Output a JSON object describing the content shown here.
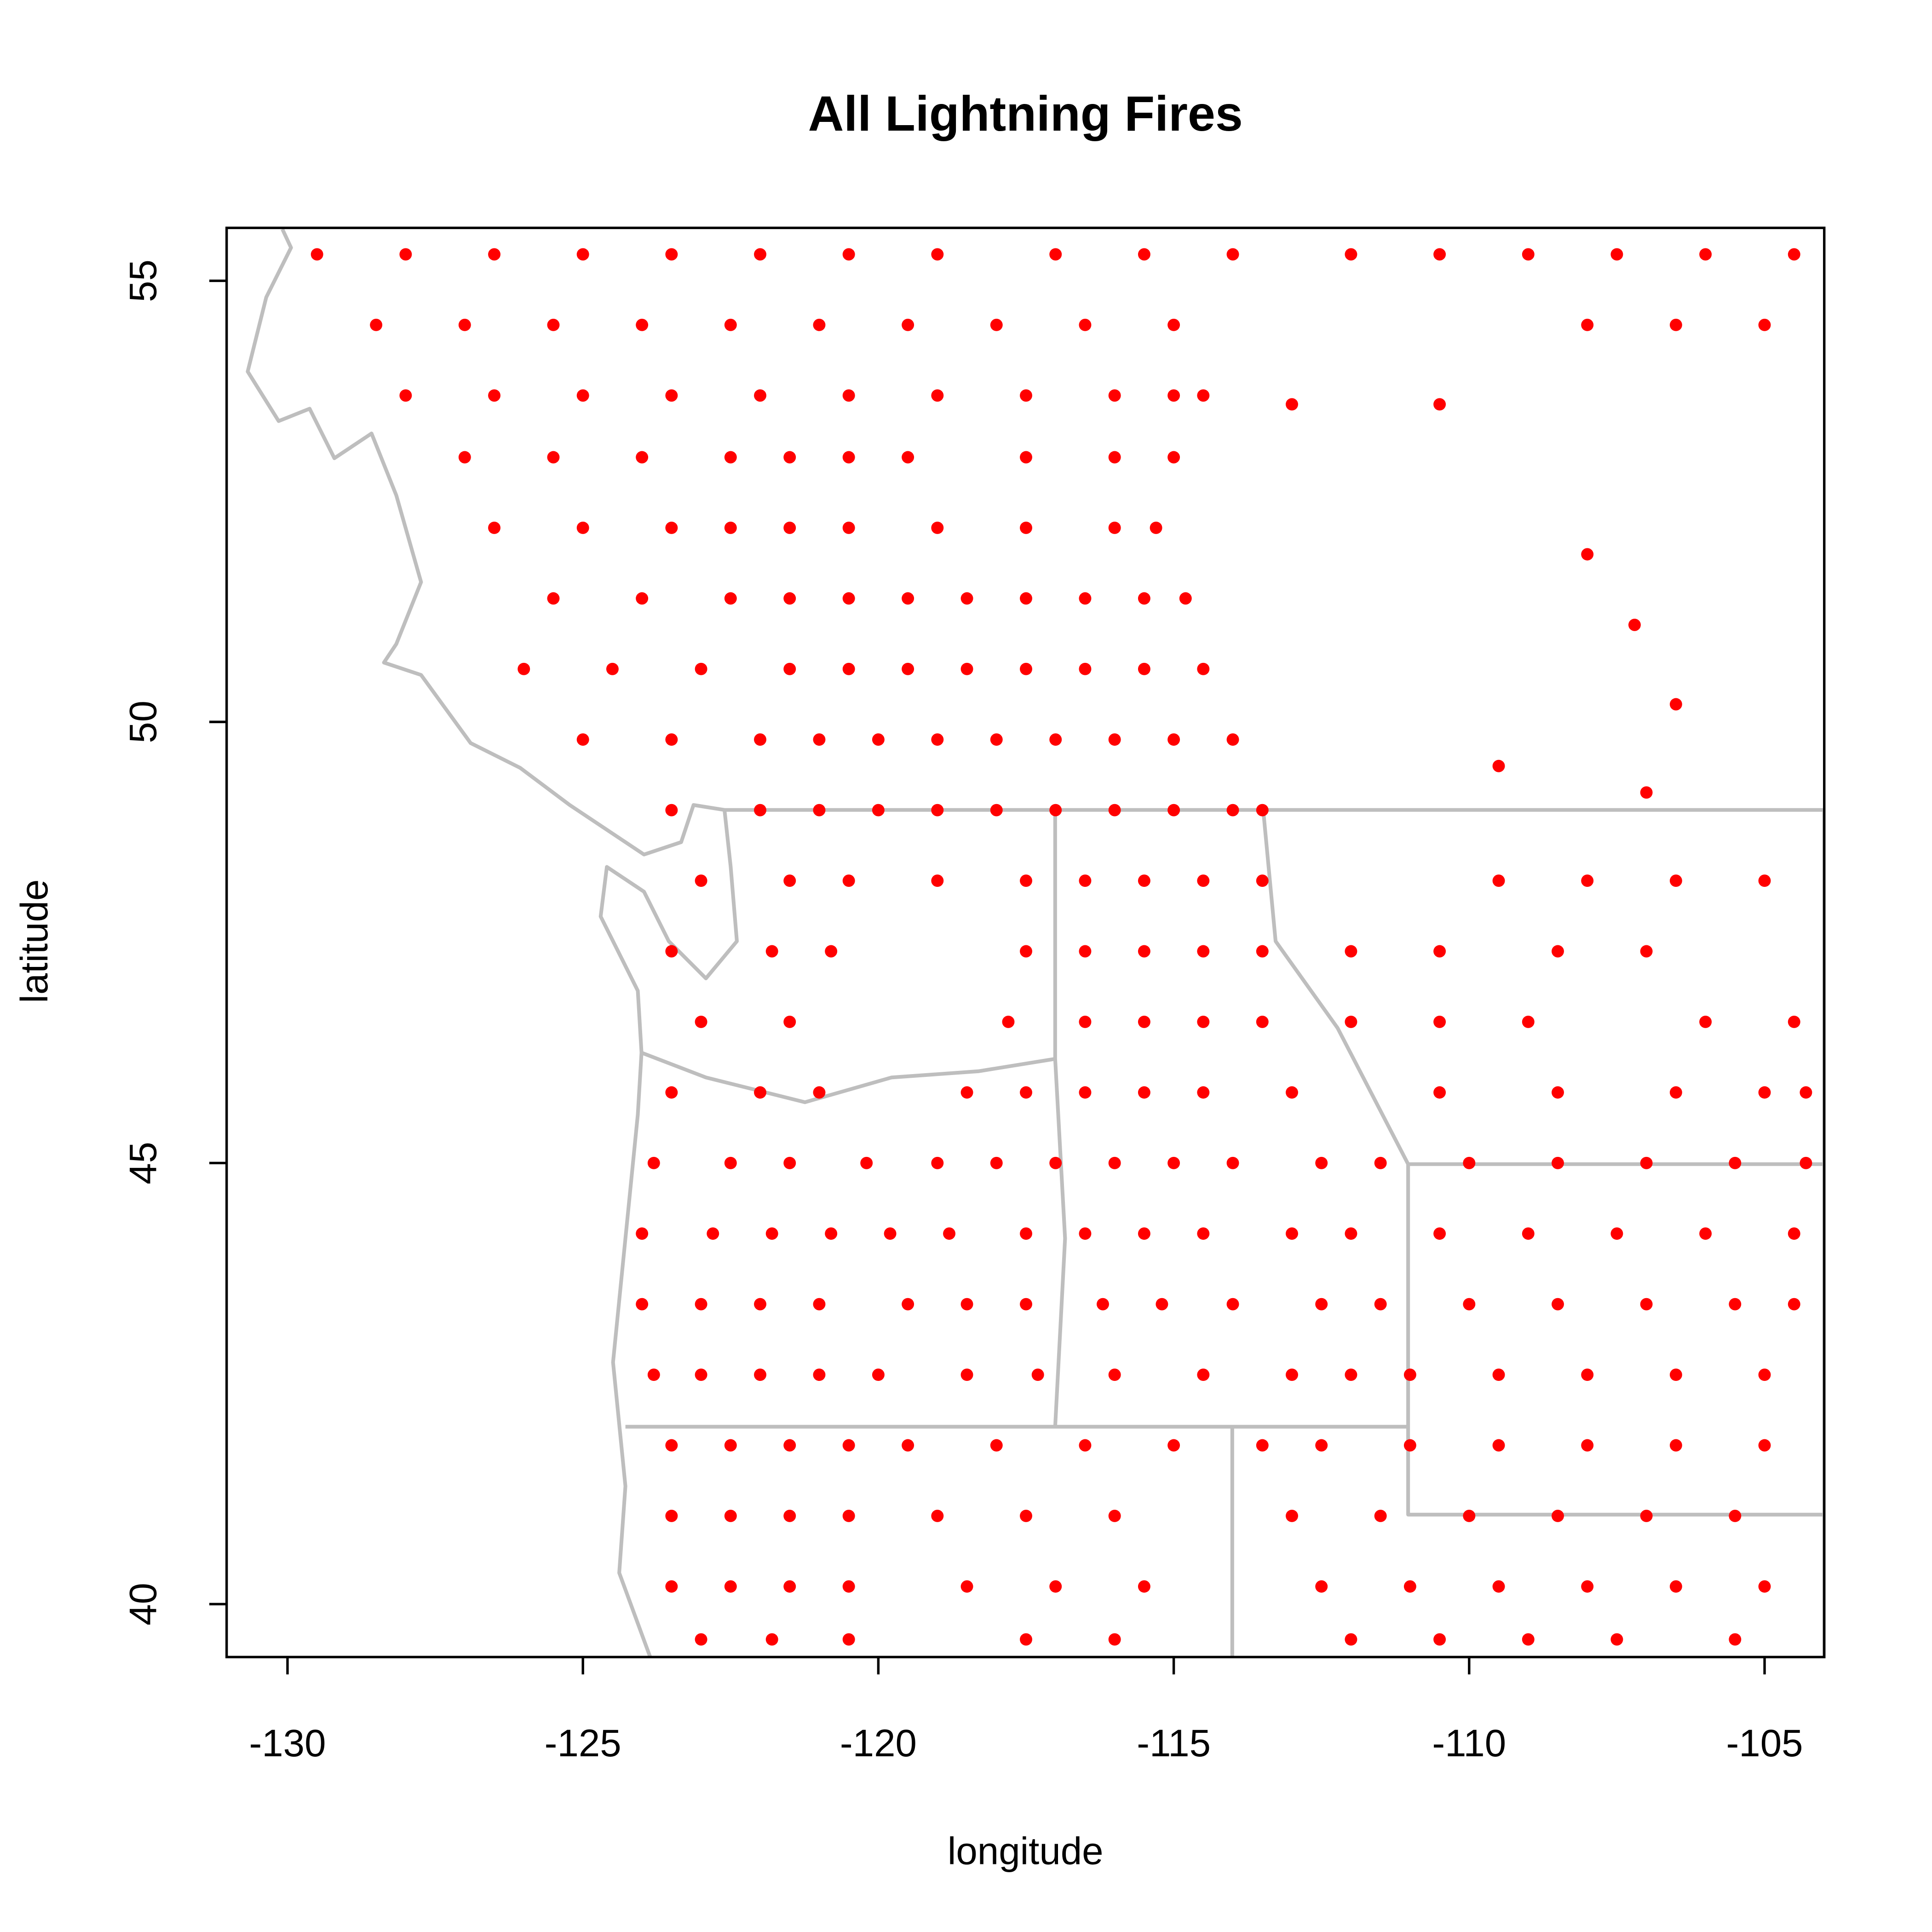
{
  "chart_data": {
    "type": "scatter",
    "title": "All Lightning Fires",
    "x_label": "longitude",
    "y_label": "latitude",
    "color": "#ff0000",
    "xlim": [
      -131.03,
      -103.99
    ],
    "ylim": [
      39.4,
      55.6
    ],
    "xticks": [
      -130,
      -125,
      -120,
      -115,
      -110,
      -105
    ],
    "yticks": [
      40,
      45,
      50,
      55
    ],
    "x": [
      -129.5,
      -128,
      -126.5,
      -125,
      -123.5,
      -122,
      -120.5,
      -119,
      -117,
      -115.5,
      -114,
      -112,
      -110.5,
      -109,
      -107.5,
      -106,
      -104.5,
      -128.5,
      -127,
      -125.5,
      -124,
      -122.5,
      -121,
      -119.5,
      -118,
      -116.5,
      -115,
      -108,
      -106.5,
      -105,
      -128,
      -126.5,
      -125,
      -123.5,
      -122,
      -120.5,
      -119,
      -117.5,
      -116,
      -115,
      -114.5,
      -127,
      -125.5,
      -124,
      -122.5,
      -121.5,
      -120.5,
      -119.5,
      -117.5,
      -116,
      -115,
      -126.5,
      -125,
      -123.5,
      -122.5,
      -121.5,
      -120.5,
      -119,
      -117.5,
      -116,
      -115.3,
      -125.5,
      -124,
      -122.5,
      -121.5,
      -120.5,
      -119.5,
      -118.5,
      -117.5,
      -116.5,
      -115.5,
      -114.8,
      -126,
      -124.5,
      -123,
      -121.5,
      -120.5,
      -119.5,
      -118.5,
      -117.5,
      -116.5,
      -115.5,
      -114.5,
      -125,
      -123.5,
      -122,
      -121,
      -120,
      -119,
      -118,
      -117,
      -116,
      -115,
      -114,
      -123.5,
      -122,
      -121,
      -120,
      -119,
      -118,
      -117,
      -116,
      -115,
      -114,
      -113.5,
      -123,
      -121.5,
      -120.5,
      -119,
      -117.5,
      -116.5,
      -115.5,
      -114.5,
      -113.5,
      -109.5,
      -108,
      -106.5,
      -105,
      -123.5,
      -121.8,
      -120.8,
      -117.5,
      -116.5,
      -115.5,
      -114.5,
      -113.5,
      -112,
      -110.5,
      -108.5,
      -107,
      -123,
      -121.5,
      -117.8,
      -116.5,
      -115.5,
      -114.5,
      -113.5,
      -112,
      -110.5,
      -109,
      -106,
      -104.5,
      -123.5,
      -122,
      -121,
      -118.5,
      -117.5,
      -116.5,
      -115.5,
      -114.5,
      -113,
      -110.5,
      -108.5,
      -106.5,
      -105,
      -104.3,
      -123.8,
      -122.5,
      -121.5,
      -120.2,
      -119,
      -118,
      -117,
      -116,
      -115,
      -114,
      -112.5,
      -111.5,
      -110,
      -108.5,
      -107,
      -105.5,
      -104.3,
      -124,
      -122.8,
      -121.8,
      -120.8,
      -119.8,
      -118.8,
      -117.5,
      -116.5,
      -115.5,
      -114.5,
      -113,
      -112,
      -110.5,
      -109,
      -107.5,
      -106,
      -104.5,
      -124,
      -123,
      -122,
      -121,
      -119.5,
      -118.5,
      -117.5,
      -116.2,
      -115.2,
      -114,
      -112.5,
      -111.5,
      -110,
      -108.5,
      -107,
      -105.5,
      -104.5,
      -123.8,
      -123,
      -122,
      -121,
      -120,
      -118.5,
      -117.3,
      -116,
      -114.5,
      -113,
      -112,
      -111,
      -109.5,
      -108,
      -106.5,
      -105,
      -123.5,
      -122.5,
      -121.5,
      -120.5,
      -119.5,
      -118,
      -116.5,
      -115,
      -113.5,
      -112.5,
      -111,
      -109.5,
      -108,
      -106.5,
      -105,
      -123.5,
      -122.5,
      -121.5,
      -120.5,
      -119,
      -117.5,
      -116,
      -113,
      -111.5,
      -110,
      -108.5,
      -107,
      -105.5,
      -123.5,
      -122.5,
      -121.5,
      -120.5,
      -118.5,
      -117,
      -115.5,
      -112.5,
      -111,
      -109.5,
      -108,
      -106.5,
      -105,
      -123,
      -121.8,
      -120.5,
      -117.5,
      -116,
      -112,
      -110.5,
      -109,
      -107.5,
      -105.5,
      -113,
      -110.5,
      -108,
      -107.2,
      -106.5,
      -109.5,
      -107
    ],
    "values": [
      55.3,
      55.3,
      55.3,
      55.3,
      55.3,
      55.3,
      55.3,
      55.3,
      55.3,
      55.3,
      55.3,
      55.3,
      55.3,
      55.3,
      55.3,
      55.3,
      55.3,
      54.5,
      54.5,
      54.5,
      54.5,
      54.5,
      54.5,
      54.5,
      54.5,
      54.5,
      54.5,
      54.5,
      54.5,
      54.5,
      53.7,
      53.7,
      53.7,
      53.7,
      53.7,
      53.7,
      53.7,
      53.7,
      53.7,
      53.7,
      53.7,
      53,
      53,
      53,
      53,
      53,
      53,
      53,
      53,
      53,
      53,
      52.2,
      52.2,
      52.2,
      52.2,
      52.2,
      52.2,
      52.2,
      52.2,
      52.2,
      52.2,
      51.4,
      51.4,
      51.4,
      51.4,
      51.4,
      51.4,
      51.4,
      51.4,
      51.4,
      51.4,
      51.4,
      50.6,
      50.6,
      50.6,
      50.6,
      50.6,
      50.6,
      50.6,
      50.6,
      50.6,
      50.6,
      50.6,
      49.8,
      49.8,
      49.8,
      49.8,
      49.8,
      49.8,
      49.8,
      49.8,
      49.8,
      49.8,
      49.8,
      49,
      49,
      49,
      49,
      49,
      49,
      49,
      49,
      49,
      49,
      49,
      48.2,
      48.2,
      48.2,
      48.2,
      48.2,
      48.2,
      48.2,
      48.2,
      48.2,
      48.2,
      48.2,
      48.2,
      48.2,
      47.4,
      47.4,
      47.4,
      47.4,
      47.4,
      47.4,
      47.4,
      47.4,
      47.4,
      47.4,
      47.4,
      47.4,
      46.6,
      46.6,
      46.6,
      46.6,
      46.6,
      46.6,
      46.6,
      46.6,
      46.6,
      46.6,
      46.6,
      46.6,
      45.8,
      45.8,
      45.8,
      45.8,
      45.8,
      45.8,
      45.8,
      45.8,
      45.8,
      45.8,
      45.8,
      45.8,
      45.8,
      45.8,
      45,
      45,
      45,
      45,
      45,
      45,
      45,
      45,
      45,
      45,
      45,
      45,
      45,
      45,
      45,
      45,
      45,
      44.2,
      44.2,
      44.2,
      44.2,
      44.2,
      44.2,
      44.2,
      44.2,
      44.2,
      44.2,
      44.2,
      44.2,
      44.2,
      44.2,
      44.2,
      44.2,
      44.2,
      43.4,
      43.4,
      43.4,
      43.4,
      43.4,
      43.4,
      43.4,
      43.4,
      43.4,
      43.4,
      43.4,
      43.4,
      43.4,
      43.4,
      43.4,
      43.4,
      43.4,
      42.6,
      42.6,
      42.6,
      42.6,
      42.6,
      42.6,
      42.6,
      42.6,
      42.6,
      42.6,
      42.6,
      42.6,
      42.6,
      42.6,
      42.6,
      42.6,
      41.8,
      41.8,
      41.8,
      41.8,
      41.8,
      41.8,
      41.8,
      41.8,
      41.8,
      41.8,
      41.8,
      41.8,
      41.8,
      41.8,
      41.8,
      41,
      41,
      41,
      41,
      41,
      41,
      41,
      41,
      41,
      41,
      41,
      41,
      41,
      40.2,
      40.2,
      40.2,
      40.2,
      40.2,
      40.2,
      40.2,
      40.2,
      40.2,
      40.2,
      40.2,
      40.2,
      40.2,
      39.6,
      39.6,
      39.6,
      39.6,
      39.6,
      39.6,
      39.6,
      39.6,
      39.6,
      39.6,
      53.6,
      53.6,
      51.9,
      51.1,
      50.2,
      49.5,
      49.2
    ]
  }
}
